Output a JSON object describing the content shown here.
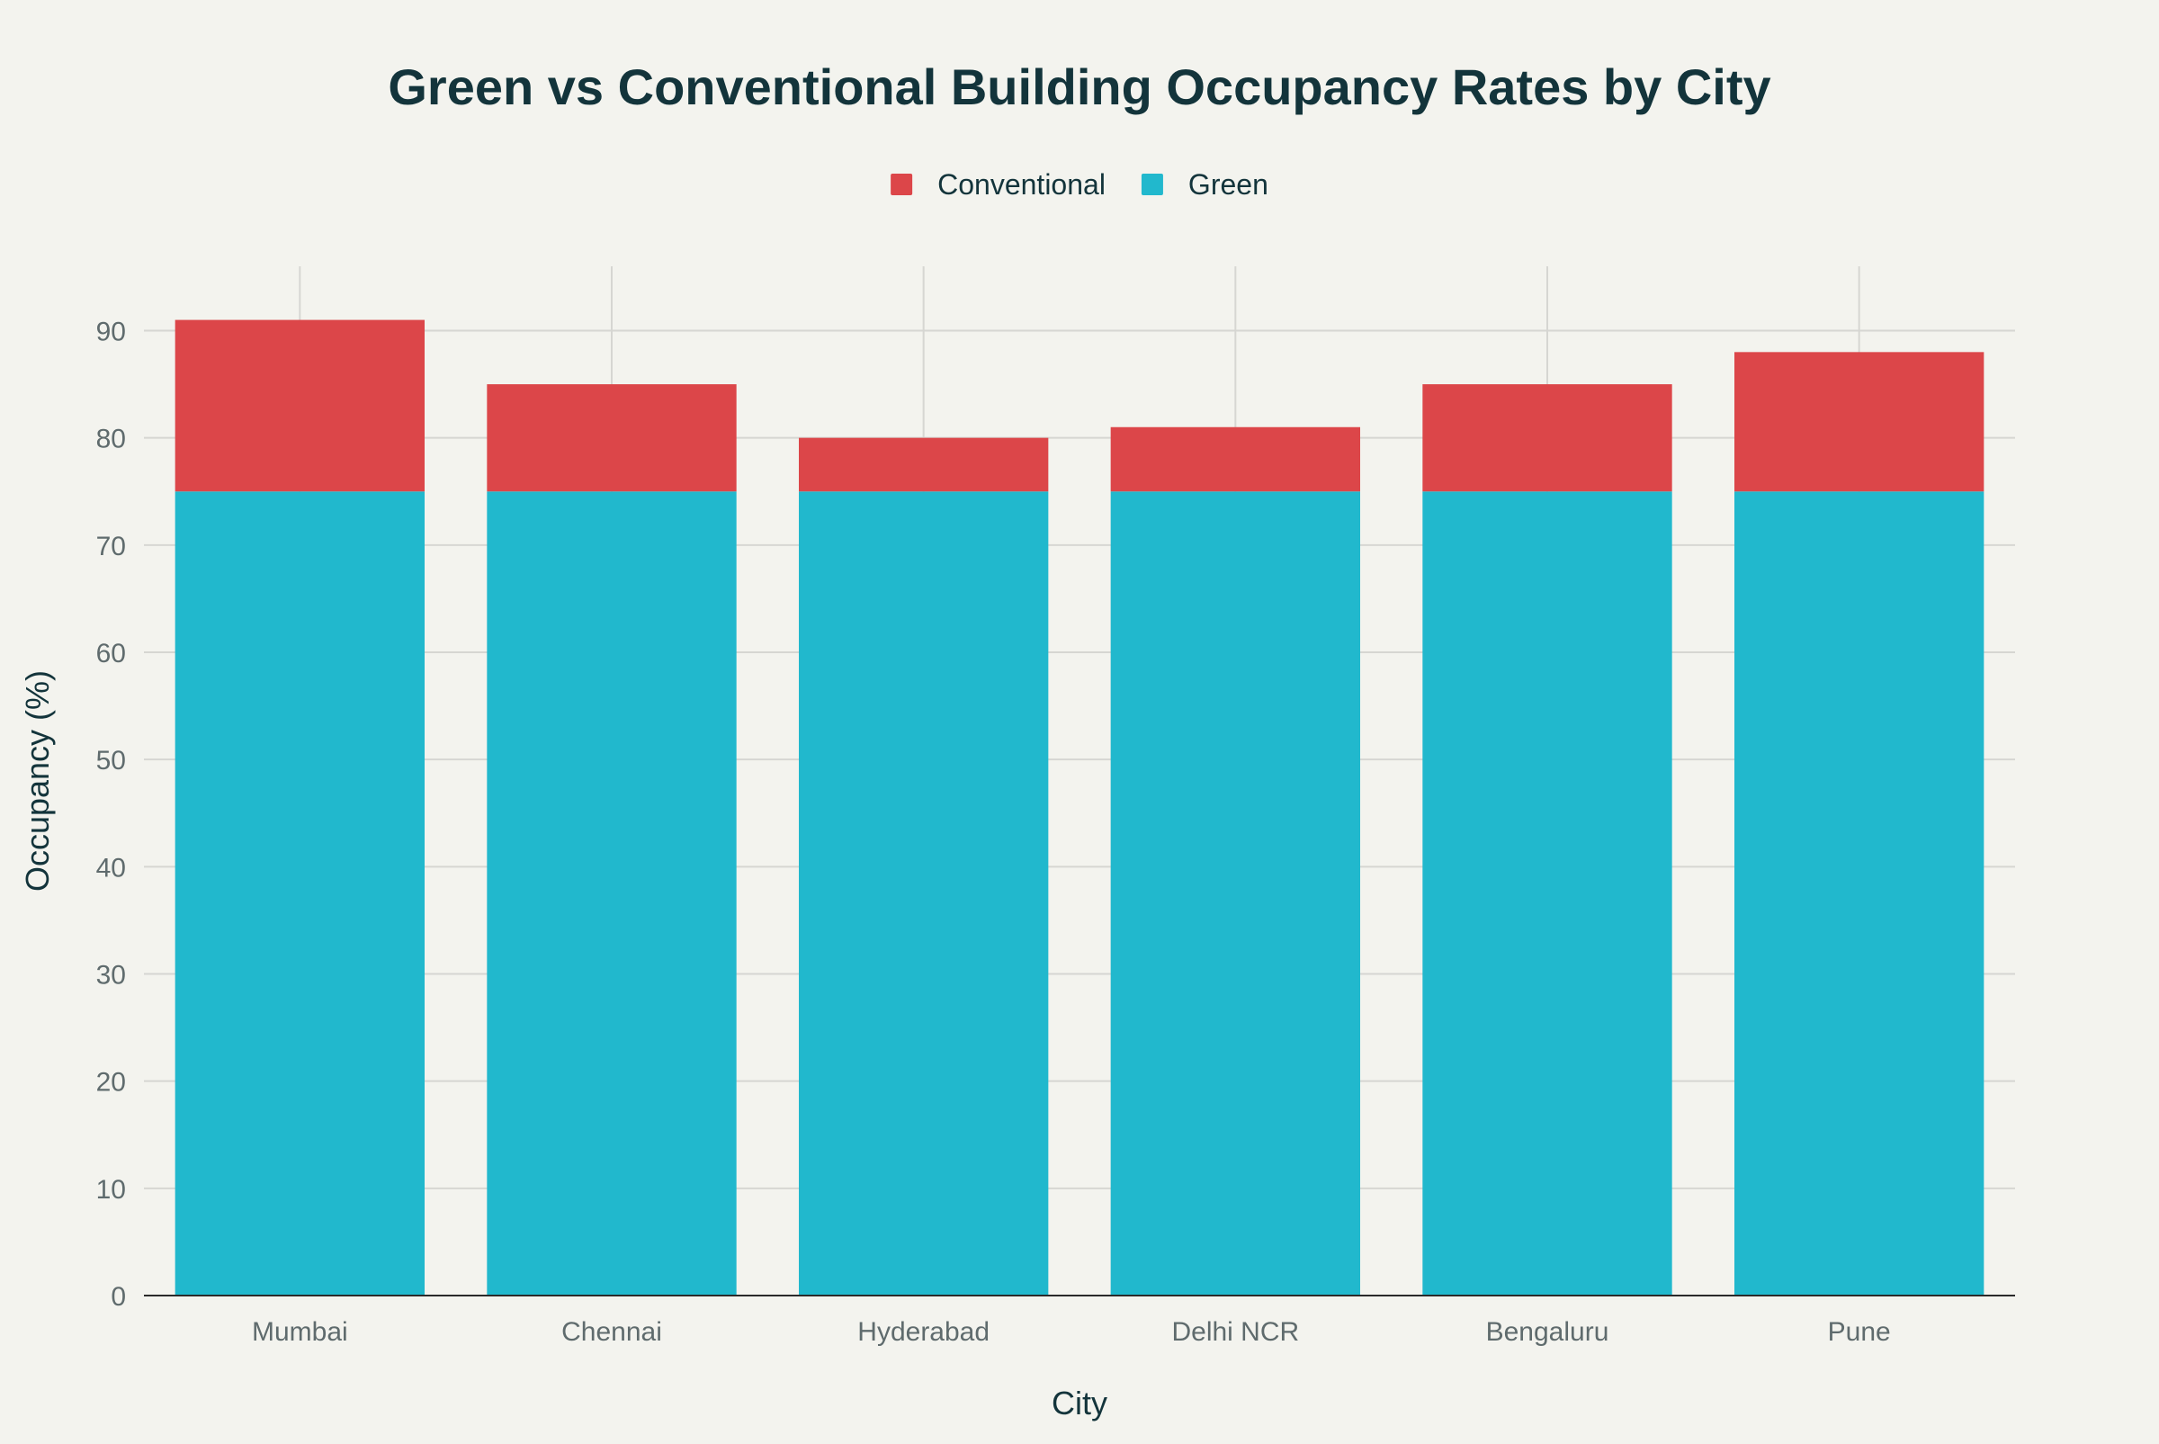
{
  "chart_data": {
    "type": "bar",
    "stacked": true,
    "title": "Green vs Conventional Building Occupancy Rates by City",
    "xlabel": "City",
    "ylabel": "Occupancy (%)",
    "categories": [
      "Mumbai",
      "Chennai",
      "Hyderabad",
      "Delhi NCR",
      "Bengaluru",
      "Pune"
    ],
    "series": [
      {
        "name": "Green",
        "color": "#21b8cd",
        "values": [
          75,
          75,
          75,
          75,
          75,
          75
        ]
      },
      {
        "name": "Conventional",
        "color": "#dc4649",
        "values": [
          16,
          10,
          5,
          6,
          10,
          13
        ]
      }
    ],
    "legend_order": [
      "Conventional",
      "Green"
    ],
    "legend_position": "top-center",
    "ylim": [
      0,
      96
    ],
    "yticks": [
      0,
      10,
      20,
      30,
      40,
      50,
      60,
      70,
      80,
      90
    ],
    "grid": true
  }
}
